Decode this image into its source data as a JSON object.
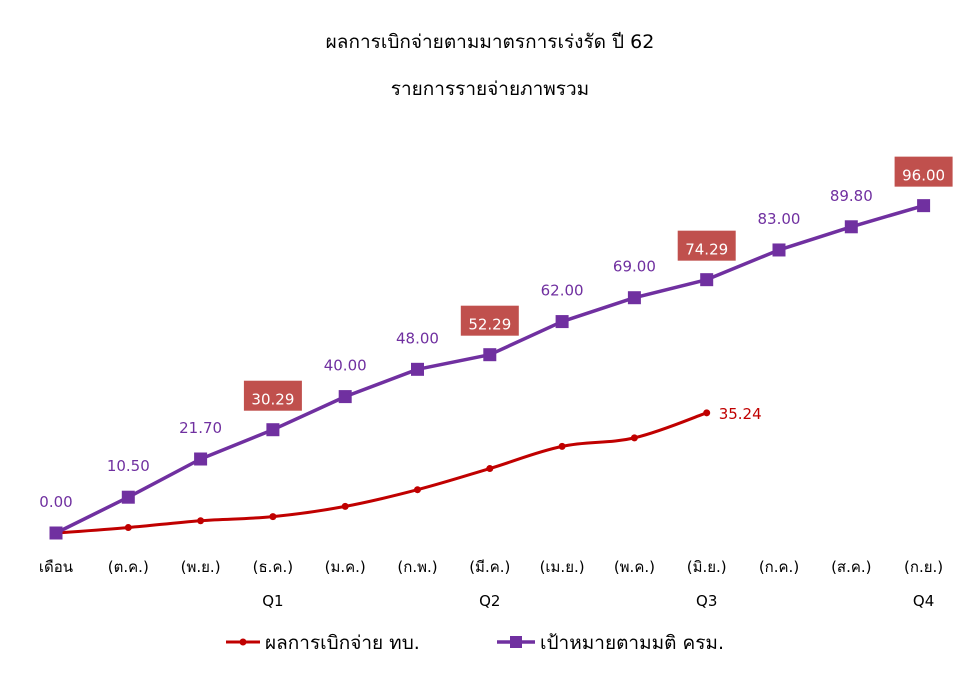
{
  "chart_data": {
    "type": "line",
    "title": "ผลการเบิกจ่ายตามมาตรการเร่งรัด ปี 62",
    "subtitle": "รายการรายจ่ายภาพรวม",
    "categories": [
      "เดือน",
      "(ต.ค.)",
      "(พ.ย.)",
      "(ธ.ค.)",
      "(ม.ค.)",
      "(ก.พ.)",
      "(มี.ค.)",
      "(เม.ย.)",
      "(พ.ค.)",
      "(มิ.ย.)",
      "(ก.ค.)",
      "(ส.ค.)",
      "(ก.ย.)"
    ],
    "quarters": [
      {
        "label": "Q1",
        "category_index": 3
      },
      {
        "label": "Q2",
        "category_index": 6
      },
      {
        "label": "Q3",
        "category_index": 9
      },
      {
        "label": "Q4",
        "category_index": 12
      }
    ],
    "series": [
      {
        "name": "ผลการเบิกจ่าย ทบ.",
        "color": "#c00000",
        "marker": "circle",
        "values": [
          0,
          1.6,
          3.6,
          4.8,
          7.8,
          12.7,
          18.9,
          25.4,
          27.9,
          35.24,
          null,
          null,
          null
        ],
        "end_label": "35.24"
      },
      {
        "name": "เป้าหมายตามมติ ครม.",
        "color": "#7030a0",
        "marker": "square",
        "values": [
          0,
          10.5,
          21.7,
          30.29,
          40,
          48,
          52.29,
          62,
          69,
          74.29,
          83,
          89.8,
          96
        ],
        "labels": [
          "0.00",
          "10.50",
          "21.70",
          "30.29",
          "40.00",
          "48.00",
          "52.29",
          "62.00",
          "69.00",
          "74.29",
          "83.00",
          "89.80",
          "96.00"
        ],
        "highlighted_indices": [
          3,
          6,
          9,
          12
        ],
        "highlight_color": "#c0504d"
      }
    ],
    "ylim": [
      0,
      100
    ],
    "grid": false,
    "legend_position": "bottom"
  }
}
